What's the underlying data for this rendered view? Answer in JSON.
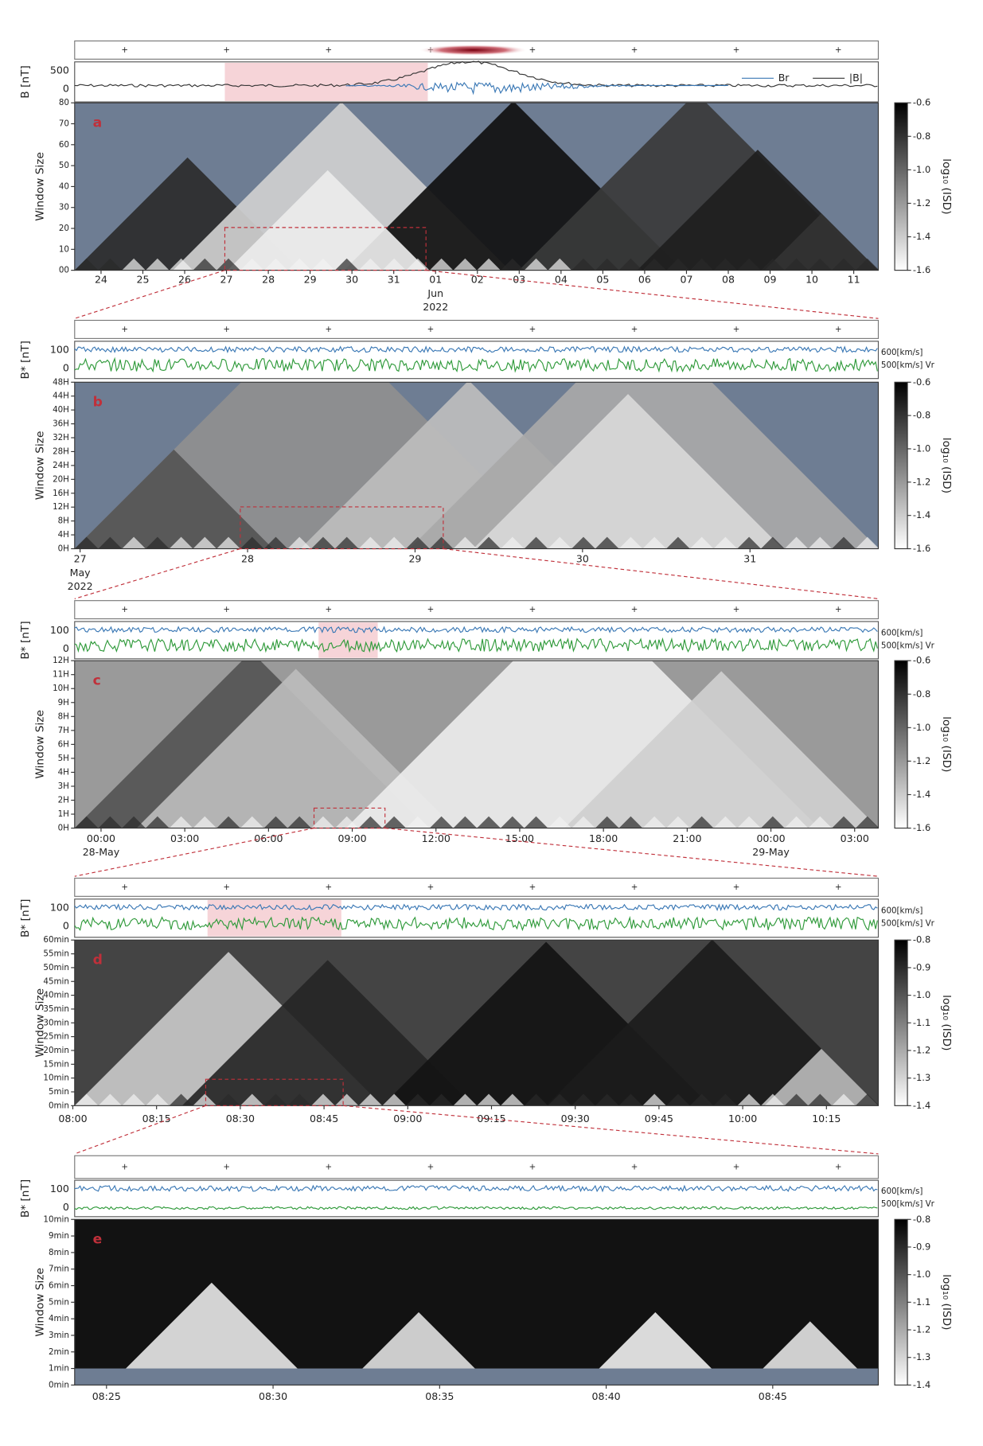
{
  "chart_data": [
    {
      "type": "heatmap",
      "panel": "a",
      "ylabel": "Window Size",
      "b_label": "B [nT]",
      "b_ticks": [
        500,
        0
      ],
      "legend": [
        "Br",
        "|B|"
      ],
      "ylim": [
        0,
        80
      ],
      "yticks": [
        {
          "value": 0,
          "label": "00"
        },
        10,
        20,
        30,
        40,
        50,
        60,
        70,
        80
      ],
      "xtick_labels": [
        [
          "24"
        ],
        [
          "25"
        ],
        [
          "26"
        ],
        [
          "27"
        ],
        [
          "28"
        ],
        [
          "29"
        ],
        [
          "30"
        ],
        [
          "31"
        ],
        [
          "01",
          "Jun",
          "2022"
        ],
        [
          "02"
        ],
        [
          "03"
        ],
        [
          "04"
        ],
        [
          "05"
        ],
        [
          "06"
        ],
        [
          "07"
        ],
        [
          "08"
        ],
        [
          "09"
        ],
        [
          "10"
        ],
        [
          "11"
        ]
      ],
      "colorbar_label": "log₁₀ (ISD)",
      "clim": [
        -1.6,
        -0.6
      ],
      "colorbar_ticks": [
        -0.6,
        -0.8,
        {
          "value": -1,
          "label": "-1.0"
        },
        -1.2,
        -1.4,
        -1.6
      ]
    },
    {
      "type": "heatmap",
      "panel": "b",
      "ylabel": "Window Size",
      "b_label": "B* [nT]",
      "b_ticks": [
        100,
        0
      ],
      "v_labels": [
        "600[km/s]",
        "500[km/s] Vr"
      ],
      "ylim": [
        0,
        48
      ],
      "yticks": [
        {
          "value": 0,
          "label": "0H"
        },
        {
          "value": 4,
          "label": "4H"
        },
        {
          "value": 8,
          "label": "8H"
        },
        {
          "value": 12,
          "label": "12H"
        },
        {
          "value": 16,
          "label": "16H"
        },
        {
          "value": 20,
          "label": "20H"
        },
        {
          "value": 24,
          "label": "24H"
        },
        {
          "value": 28,
          "label": "28H"
        },
        {
          "value": 32,
          "label": "32H"
        },
        {
          "value": 36,
          "label": "36H"
        },
        {
          "value": 40,
          "label": "40H"
        },
        {
          "value": 44,
          "label": "44H"
        },
        {
          "value": 48,
          "label": "48H"
        }
      ],
      "xtick_labels": [
        [
          "27",
          "May",
          "2022"
        ],
        [
          "28"
        ],
        [
          "29"
        ],
        [
          "30"
        ],
        [
          "31"
        ]
      ],
      "colorbar_label": "log₁₀ (ISD)",
      "clim": [
        -1.6,
        -0.6
      ],
      "colorbar_ticks": [
        -0.6,
        -0.8,
        {
          "value": -1,
          "label": "-1.0"
        },
        -1.2,
        -1.4,
        -1.6
      ]
    },
    {
      "type": "heatmap",
      "panel": "c",
      "ylabel": "Window Size",
      "b_label": "B* [nT]",
      "b_ticks": [
        100,
        0
      ],
      "v_labels": [
        "600[km/s]",
        "500[km/s] Vr"
      ],
      "ylim": [
        0,
        12
      ],
      "yticks": [
        {
          "value": 0,
          "label": "0H"
        },
        {
          "value": 1,
          "label": "1H"
        },
        {
          "value": 2,
          "label": "2H"
        },
        {
          "value": 3,
          "label": "3H"
        },
        {
          "value": 4,
          "label": "4H"
        },
        {
          "value": 5,
          "label": "5H"
        },
        {
          "value": 6,
          "label": "6H"
        },
        {
          "value": 7,
          "label": "7H"
        },
        {
          "value": 8,
          "label": "8H"
        },
        {
          "value": 9,
          "label": "9H"
        },
        {
          "value": 10,
          "label": "10H"
        },
        {
          "value": 11,
          "label": "11H"
        },
        {
          "value": 12,
          "label": "12H"
        }
      ],
      "xtick_labels": [
        [
          "00:00",
          "28-May"
        ],
        [
          "03:00"
        ],
        [
          "06:00"
        ],
        [
          "09:00"
        ],
        [
          "12:00"
        ],
        [
          "15:00"
        ],
        [
          "18:00"
        ],
        [
          "21:00"
        ],
        [
          "00:00",
          "29-May"
        ],
        [
          "03:00"
        ]
      ],
      "colorbar_label": "log₁₀ (ISD)",
      "clim": [
        -1.6,
        -0.6
      ],
      "colorbar_ticks": [
        -0.6,
        -0.8,
        {
          "value": -1,
          "label": "-1.0"
        },
        -1.2,
        -1.4,
        -1.6
      ]
    },
    {
      "type": "heatmap",
      "panel": "d",
      "ylabel": "Window Size",
      "b_label": "B* [nT]",
      "b_ticks": [
        100,
        0
      ],
      "v_labels": [
        "600[km/s]",
        "500[km/s] Vr"
      ],
      "ylim": [
        0,
        60
      ],
      "yticks": [
        {
          "value": 0,
          "label": "0min"
        },
        {
          "value": 5,
          "label": "5min"
        },
        {
          "value": 10,
          "label": "10min"
        },
        {
          "value": 15,
          "label": "15min"
        },
        {
          "value": 20,
          "label": "20min"
        },
        {
          "value": 25,
          "label": "25min"
        },
        {
          "value": 30,
          "label": "30min"
        },
        {
          "value": 35,
          "label": "35min"
        },
        {
          "value": 40,
          "label": "40min"
        },
        {
          "value": 45,
          "label": "45min"
        },
        {
          "value": 50,
          "label": "50min"
        },
        {
          "value": 55,
          "label": "55min"
        },
        {
          "value": 60,
          "label": "60min"
        }
      ],
      "xtick_labels": [
        [
          "08:00"
        ],
        [
          "08:15"
        ],
        [
          "08:30"
        ],
        [
          "08:45"
        ],
        [
          "09:00"
        ],
        [
          "09:15"
        ],
        [
          "09:30"
        ],
        [
          "09:45"
        ],
        [
          "10:00"
        ],
        [
          "10:15"
        ]
      ],
      "colorbar_label": "log₁₀ (ISD)",
      "clim": [
        -1.4,
        -0.8
      ],
      "colorbar_ticks": [
        -0.8,
        -0.9,
        {
          "value": -1,
          "label": "-1.0"
        },
        -1.1,
        -1.2,
        -1.3,
        -1.4
      ]
    },
    {
      "type": "heatmap",
      "panel": "e",
      "ylabel": "Window Size",
      "b_label": "B* [nT]",
      "b_ticks": [
        100,
        0
      ],
      "v_labels": [
        "600[km/s]",
        "500[km/s] Vr"
      ],
      "ylim": [
        0,
        10
      ],
      "yticks": [
        {
          "value": 0,
          "label": "0min"
        },
        {
          "value": 1,
          "label": "1min"
        },
        {
          "value": 2,
          "label": "2min"
        },
        {
          "value": 3,
          "label": "3min"
        },
        {
          "value": 4,
          "label": "4min"
        },
        {
          "value": 5,
          "label": "5min"
        },
        {
          "value": 6,
          "label": "6min"
        },
        {
          "value": 7,
          "label": "7min"
        },
        {
          "value": 8,
          "label": "8min"
        },
        {
          "value": 9,
          "label": "9min"
        },
        {
          "value": 10,
          "label": "10min"
        }
      ],
      "xtick_labels": [
        [
          "08:25"
        ],
        [
          "08:30"
        ],
        [
          "08:35"
        ],
        [
          "08:40"
        ],
        [
          "08:45"
        ]
      ],
      "colorbar_label": "log₁₀ (ISD)",
      "clim": [
        -1.4,
        -0.8
      ],
      "colorbar_ticks": [
        -0.8,
        -0.9,
        {
          "value": -1,
          "label": "-1.0"
        },
        -1.1,
        -1.2,
        -1.3,
        -1.4
      ]
    }
  ]
}
